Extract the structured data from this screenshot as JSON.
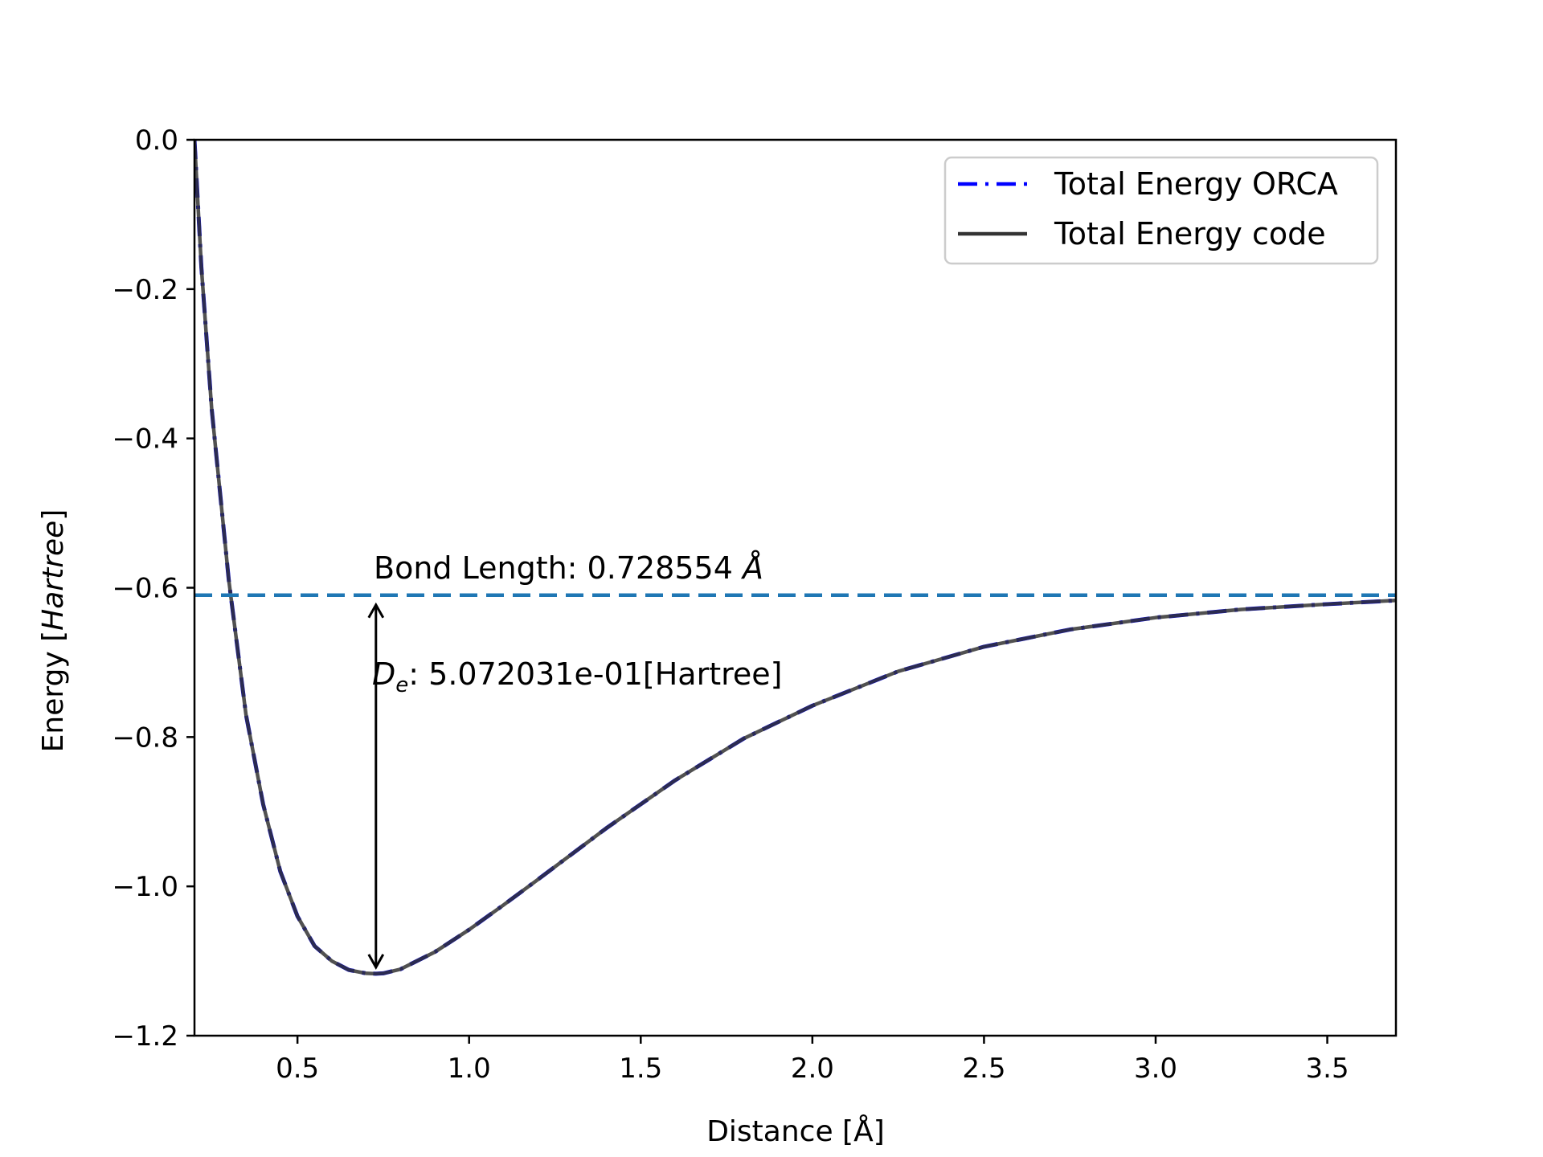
{
  "chart_data": {
    "type": "line",
    "title": "",
    "xlabel": "Distance [Å]",
    "ylabel_prefix": "Energy [",
    "ylabel_italic": "Hartree",
    "ylabel_suffix": "]",
    "xlim": [
      0.2,
      3.7
    ],
    "ylim": [
      -1.2,
      0.0
    ],
    "xticks": [
      0.5,
      1.0,
      1.5,
      2.0,
      2.5,
      3.0,
      3.5
    ],
    "xtick_labels": [
      "0.5",
      "1.0",
      "1.5",
      "2.0",
      "2.5",
      "3.0",
      "3.5"
    ],
    "yticks": [
      0.0,
      -0.2,
      -0.4,
      -0.6,
      -0.8,
      -1.0,
      -1.2
    ],
    "ytick_labels": [
      "0.0",
      "−0.2",
      "−0.4",
      "−0.6",
      "−0.8",
      "−1.0",
      "−1.2"
    ],
    "grid": false,
    "legend_position": "top-right",
    "series": [
      {
        "name": "Total Energy ORCA",
        "style": "dashdot",
        "color": "#0000ff",
        "x": [
          0.2,
          0.22,
          0.25,
          0.3,
          0.35,
          0.4,
          0.45,
          0.5,
          0.55,
          0.6,
          0.65,
          0.7,
          0.7286,
          0.75,
          0.8,
          0.9,
          1.0,
          1.1,
          1.2,
          1.4,
          1.6,
          1.8,
          2.0,
          2.25,
          2.5,
          2.75,
          3.0,
          3.25,
          3.5,
          3.7
        ],
        "y": [
          0.0,
          -0.17,
          -0.36,
          -0.59,
          -0.77,
          -0.89,
          -0.98,
          -1.04,
          -1.08,
          -1.1,
          -1.112,
          -1.1165,
          -1.117,
          -1.1165,
          -1.111,
          -1.088,
          -1.058,
          -1.025,
          -0.991,
          -0.922,
          -0.858,
          -0.802,
          -0.758,
          -0.712,
          -0.679,
          -0.656,
          -0.64,
          -0.629,
          -0.622,
          -0.617
        ]
      },
      {
        "name": "Total Energy code",
        "style": "solid",
        "color": "#333333",
        "x": [
          0.2,
          0.22,
          0.25,
          0.3,
          0.35,
          0.4,
          0.45,
          0.5,
          0.55,
          0.6,
          0.65,
          0.7,
          0.7286,
          0.75,
          0.8,
          0.9,
          1.0,
          1.1,
          1.2,
          1.4,
          1.6,
          1.8,
          2.0,
          2.25,
          2.5,
          2.75,
          3.0,
          3.25,
          3.5,
          3.7
        ],
        "y": [
          0.0,
          -0.17,
          -0.36,
          -0.59,
          -0.77,
          -0.89,
          -0.98,
          -1.04,
          -1.08,
          -1.1,
          -1.112,
          -1.1165,
          -1.117,
          -1.1165,
          -1.111,
          -1.088,
          -1.058,
          -1.025,
          -0.991,
          -0.922,
          -0.858,
          -0.802,
          -0.758,
          -0.712,
          -0.679,
          -0.656,
          -0.64,
          -0.629,
          -0.622,
          -0.617
        ]
      }
    ],
    "reference_line": {
      "y": -0.61,
      "color": "#1f77b4",
      "style": "dashed"
    },
    "arrow": {
      "x": 0.7286,
      "y_start": -0.61,
      "y_end": -1.117
    },
    "annotations": {
      "bond_length_text": "Bond Length: 0.728554 ",
      "bond_length_unit": "Å",
      "de_symbol": "D",
      "de_subscript": "e",
      "de_value_text": ": 5.072031e-01[Hartree]"
    }
  }
}
